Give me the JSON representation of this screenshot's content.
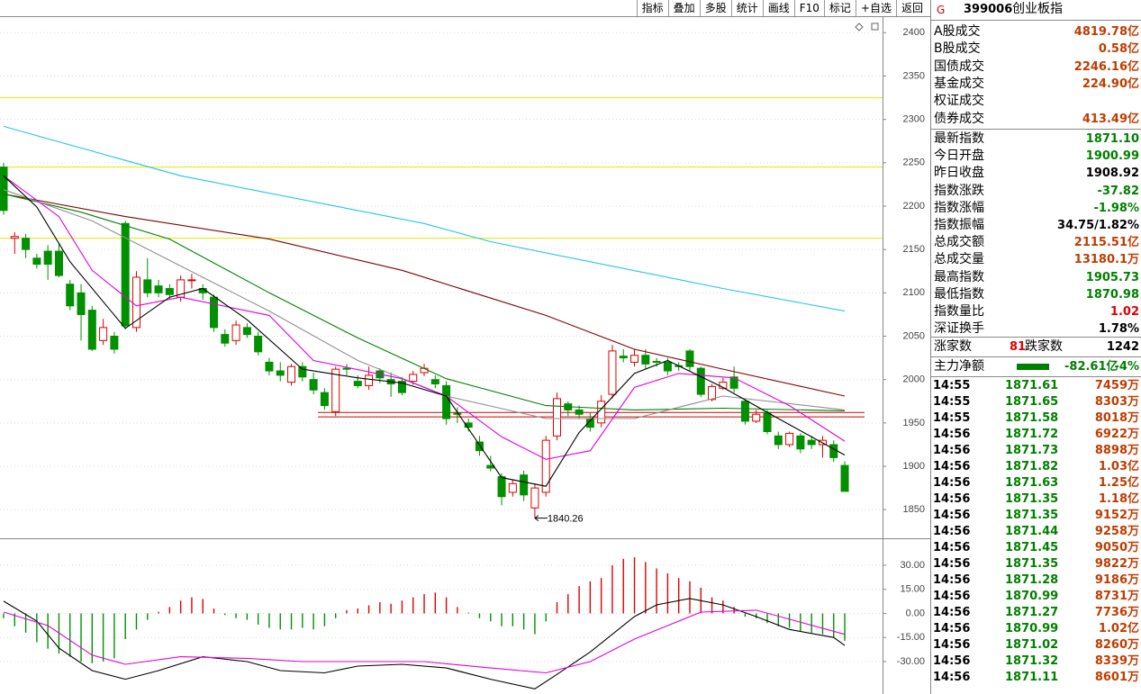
{
  "toolbar": [
    "指标",
    "叠加",
    "多股",
    "统计",
    "画线",
    "F10",
    "标记",
    "+自选",
    "返回"
  ],
  "chart": {
    "type": "candlestick",
    "ylim": [
      1817,
      2419
    ],
    "yticks": [
      2400,
      2350,
      2300,
      2250,
      2200,
      2150,
      2100,
      2050,
      2000,
      1950,
      1900,
      1850
    ],
    "grid": true,
    "up_color": "#e00000",
    "down_color": "#009000",
    "candles": {
      "open": [
        2245,
        2163,
        2163,
        2140,
        2148,
        2148,
        2110,
        2100,
        2080,
        2045,
        2050,
        2180,
        2060,
        2115,
        2108,
        2105,
        2095,
        2114,
        2105,
        2095,
        2052,
        2045,
        2060,
        2050,
        2020,
        2010,
        1997,
        2015,
        2000,
        1985,
        1963,
        2013,
        1998,
        1993,
        2010,
        2000,
        1998,
        1998,
        2008,
        2000,
        1993,
        1961,
        1950,
        1928,
        1901,
        1888,
        1870,
        1890,
        1852,
        1870,
        1935,
        1972,
        1965,
        1955,
        1950,
        1983,
        2027,
        2020,
        2028,
        2021,
        2020,
        2016,
        2033,
        2013,
        1977,
        1990,
        2003,
        1975,
        1952,
        1962,
        1935,
        1925,
        1935,
        1930,
        1925,
        1925,
        1900.99
      ],
      "high": [
        2250,
        2170,
        2168,
        2145,
        2155,
        2158,
        2115,
        2110,
        2085,
        2070,
        2055,
        2183,
        2125,
        2140,
        2115,
        2110,
        2120,
        2122,
        2110,
        2098,
        2058,
        2068,
        2065,
        2055,
        2025,
        2020,
        2018,
        2020,
        2008,
        1990,
        2015,
        2018,
        2005,
        2015,
        2013,
        2008,
        2003,
        2010,
        2018,
        2005,
        1998,
        1968,
        1955,
        1935,
        1912,
        1892,
        1885,
        1895,
        1880,
        1935,
        1985,
        1975,
        1970,
        1962,
        1982,
        2040,
        2035,
        2035,
        2035,
        2025,
        2025,
        2020,
        2035,
        2015,
        1995,
        2002,
        2015,
        1978,
        1965,
        1965,
        1940,
        1940,
        1938,
        1935,
        1935,
        1930,
        1905.73
      ],
      "low": [
        2190,
        2145,
        2140,
        2128,
        2115,
        2118,
        2080,
        2045,
        2033,
        2040,
        2030,
        2058,
        2055,
        2095,
        2095,
        2093,
        2090,
        2105,
        2092,
        2055,
        2038,
        2040,
        2048,
        2028,
        2005,
        1998,
        1993,
        1998,
        1983,
        1965,
        1958,
        2005,
        1990,
        1988,
        1996,
        1980,
        1982,
        1994,
        2004,
        1990,
        1948,
        1950,
        1940,
        1912,
        1894,
        1855,
        1865,
        1860,
        1840.26,
        1865,
        1930,
        1958,
        1955,
        1940,
        1945,
        1978,
        2020,
        2015,
        2012,
        2015,
        2005,
        2010,
        2010,
        1980,
        1975,
        1988,
        1985,
        1948,
        1950,
        1937,
        1920,
        1922,
        1915,
        1920,
        1910,
        1905,
        1870.98
      ],
      "close": [
        2195,
        2165,
        2150,
        2133,
        2133,
        2120,
        2085,
        2075,
        2035,
        2060,
        2035,
        2062,
        2118,
        2100,
        2100,
        2098,
        2115,
        2115,
        2100,
        2060,
        2042,
        2063,
        2052,
        2032,
        2010,
        2005,
        2015,
        2003,
        1988,
        1970,
        2012,
        2012,
        1993,
        2005,
        2002,
        1995,
        1985,
        2006,
        2013,
        1995,
        1955,
        1960,
        1945,
        1918,
        1898,
        1865,
        1880,
        1867,
        1875,
        1930,
        1978,
        1965,
        1960,
        1945,
        1975,
        2033,
        2025,
        2028,
        2018,
        2020,
        2010,
        2015,
        2015,
        1983,
        1992,
        1997,
        1990,
        1952,
        1960,
        1940,
        1925,
        1938,
        1920,
        1925,
        1930,
        1910,
        1871.1
      ]
    },
    "hlines": [
      {
        "value": 2325,
        "color": "#e8e800"
      },
      {
        "value": 2245,
        "color": "#e8e800"
      },
      {
        "value": 2163,
        "color": "#e8e800"
      },
      {
        "value": 1962,
        "color": "#d00000"
      },
      {
        "value": 1957,
        "color": "#d00000"
      }
    ],
    "lines": [
      {
        "color": "#20c8e0",
        "x": [
          0,
          16,
          38,
          44,
          65,
          76
        ],
        "values": [
          2292,
          2235,
          2180,
          2159,
          2105,
          2079
        ]
      },
      {
        "color": "#800000",
        "x": [
          0,
          11,
          24,
          36,
          49,
          57,
          65,
          76
        ],
        "values": [
          2214,
          2188,
          2162,
          2126,
          2074,
          2035,
          2012,
          1981
        ]
      },
      {
        "color": "#008000",
        "x": [
          0,
          7,
          15,
          24,
          32,
          40,
          49,
          57,
          65,
          76
        ],
        "values": [
          2214,
          2193,
          2162,
          2100,
          2048,
          2001,
          1970,
          1965,
          1967,
          1964
        ]
      },
      {
        "color": "#909090",
        "x": [
          0,
          8,
          16,
          24,
          32,
          40,
          49,
          57,
          65,
          76
        ],
        "values": [
          2219,
          2183,
          2131,
          2079,
          2022,
          1981,
          1955,
          1955,
          1981,
          1965
        ]
      },
      {
        "color": "#e000e0",
        "x": [
          0,
          5,
          8,
          12,
          16,
          24,
          28,
          36,
          40,
          45,
          49,
          53,
          57,
          61,
          66,
          71,
          76
        ],
        "values": [
          2235,
          2188,
          2126,
          2085,
          2095,
          2074,
          2022,
          2001,
          1981,
          1934,
          1908,
          1918,
          1991,
          2007,
          2002,
          1970,
          1929
        ]
      },
      {
        "color": "#000000",
        "x": [
          0,
          3,
          6,
          11,
          15,
          18,
          22,
          27,
          32,
          36,
          40,
          45,
          49,
          52,
          57,
          60,
          65,
          70,
          76
        ],
        "values": [
          2235,
          2199,
          2136,
          2059,
          2095,
          2105,
          2069,
          2012,
          2002,
          1996,
          1981,
          1887,
          1877,
          1939,
          2007,
          2022,
          1991,
          1955,
          1913
        ]
      }
    ],
    "annotation": "1840.26"
  },
  "macd": {
    "type": "bar",
    "ylim": [
      -50.2,
      46.8
    ],
    "yticks": [
      {
        "value": 30,
        "label": "30.00"
      },
      {
        "value": 15,
        "label": "15.00"
      },
      {
        "value": 0,
        "label": "0.00"
      },
      {
        "value": -15,
        "label": "-15.00"
      },
      {
        "value": -30,
        "label": "-30.00"
      }
    ],
    "grid": true,
    "up_color": "#e00000",
    "down_color": "#009000",
    "values": [
      -3,
      -8,
      -12,
      -18,
      -22,
      -25,
      -27,
      -30,
      -31,
      -30,
      -28,
      -16,
      -10,
      -4,
      1,
      4,
      8,
      10,
      9,
      3,
      -1,
      -3,
      -4,
      -7,
      -9,
      -10,
      -10,
      -9,
      -10,
      -8,
      -3,
      2,
      3,
      5,
      7,
      6,
      8,
      10,
      12,
      13,
      10,
      4,
      0.5,
      -3,
      -5,
      -8,
      -8,
      -10,
      -13,
      -5,
      7,
      12,
      17,
      20,
      22,
      30,
      34,
      35,
      32,
      28,
      25,
      22,
      20,
      16,
      10,
      8,
      4,
      -2,
      -3,
      -6,
      -8,
      -9,
      -11,
      -12,
      -13,
      -15,
      -17
    ],
    "lines": [
      {
        "color": "#000000",
        "x": [
          0,
          3,
          5,
          8,
          11,
          14,
          18,
          22,
          25,
          29,
          32,
          36,
          40,
          44,
          48,
          50,
          53,
          57,
          59,
          62,
          65,
          68,
          71,
          75,
          76
        ],
        "values": [
          7.6,
          -4.8,
          -21.6,
          -35.6,
          -41,
          -35.6,
          -27,
          -30,
          -35.6,
          -37,
          -32.8,
          -31.7,
          -34,
          -41,
          -47,
          -38,
          -24,
          -2,
          5.3,
          9.3,
          5.3,
          -2,
          -10,
          -15,
          -20
        ]
      },
      {
        "color": "#e000e0",
        "x": [
          0,
          4,
          8,
          11,
          16,
          22,
          27,
          32,
          38,
          44,
          49,
          53,
          57,
          60,
          63,
          68,
          71,
          76
        ],
        "values": [
          0.8,
          -7.6,
          -26,
          -31.7,
          -27,
          -28,
          -30,
          -30,
          -30,
          -34,
          -37,
          -30,
          -16,
          -7.6,
          0.8,
          2,
          -3.6,
          -13
        ]
      }
    ]
  },
  "quote": {
    "flag": "G",
    "code": "399006",
    "name": "创业板指",
    "turnover": [
      {
        "label": "A股成交",
        "value": "4819.78亿",
        "color": "#c03c00"
      },
      {
        "label": "B股成交",
        "value": "0.58亿",
        "color": "#c03c00"
      },
      {
        "label": "国债成交",
        "value": "2246.16亿",
        "color": "#c03c00"
      },
      {
        "label": "基金成交",
        "value": "224.90亿",
        "color": "#c03c00"
      },
      {
        "label": "权证成交"
      },
      {
        "label": "债券成交",
        "value": "413.49亿",
        "color": "#c03c00"
      }
    ],
    "stats": [
      {
        "label": "最新指数",
        "value": "1871.10",
        "color": "#008000"
      },
      {
        "label": "今日开盘",
        "value": "1900.99",
        "color": "#008000"
      },
      {
        "label": "昨日收盘",
        "value": "1908.92",
        "color": "#000000"
      },
      {
        "label": "指数涨跌",
        "value": "-37.82",
        "color": "#008000"
      },
      {
        "label": "指数涨幅",
        "value": "-1.98%",
        "color": "#008000"
      },
      {
        "label": "指数振幅",
        "value": "34.75/1.82%",
        "color": "#000000"
      },
      {
        "label": "总成交额",
        "value": "2115.51亿",
        "color": "#c03c00"
      },
      {
        "label": "总成交量",
        "value": "13180.1万",
        "color": "#c03c00"
      },
      {
        "label": "最高指数",
        "value": "1905.73",
        "color": "#008000"
      },
      {
        "label": "最低指数",
        "value": "1870.98",
        "color": "#008000"
      },
      {
        "label": "指数量比",
        "value": "1.02",
        "color": "#e00000"
      },
      {
        "label": "深证换手",
        "value": "1.78%",
        "color": "#000000"
      }
    ],
    "breadth": {
      "up_label": "涨家数",
      "up": "81",
      "down_label": "跌家数",
      "down": "1242"
    },
    "main_force": {
      "label": "主力净额",
      "value": "-82.61亿",
      "pct": "-4%"
    },
    "trades": [
      [
        "14:55",
        "1871.61",
        "7459万"
      ],
      [
        "14:55",
        "1871.65",
        "8303万"
      ],
      [
        "14:55",
        "1871.58",
        "8018万"
      ],
      [
        "14:56",
        "1871.72",
        "6922万"
      ],
      [
        "14:56",
        "1871.73",
        "8898万"
      ],
      [
        "14:56",
        "1871.82",
        "1.03亿"
      ],
      [
        "14:56",
        "1871.63",
        "1.25亿"
      ],
      [
        "14:56",
        "1871.35",
        "1.18亿"
      ],
      [
        "14:56",
        "1871.35",
        "9152万"
      ],
      [
        "14:56",
        "1871.44",
        "9258万"
      ],
      [
        "14:56",
        "1871.45",
        "9050万"
      ],
      [
        "14:56",
        "1871.35",
        "9822万"
      ],
      [
        "14:56",
        "1871.28",
        "9186万"
      ],
      [
        "14:56",
        "1870.99",
        "8731万"
      ],
      [
        "14:56",
        "1871.27",
        "7736万"
      ],
      [
        "14:56",
        "1870.99",
        "1.02亿"
      ],
      [
        "14:56",
        "1871.02",
        "8260万"
      ],
      [
        "14:56",
        "1871.32",
        "8339万"
      ],
      [
        "14:56",
        "1871.11",
        "8601万"
      ]
    ]
  }
}
